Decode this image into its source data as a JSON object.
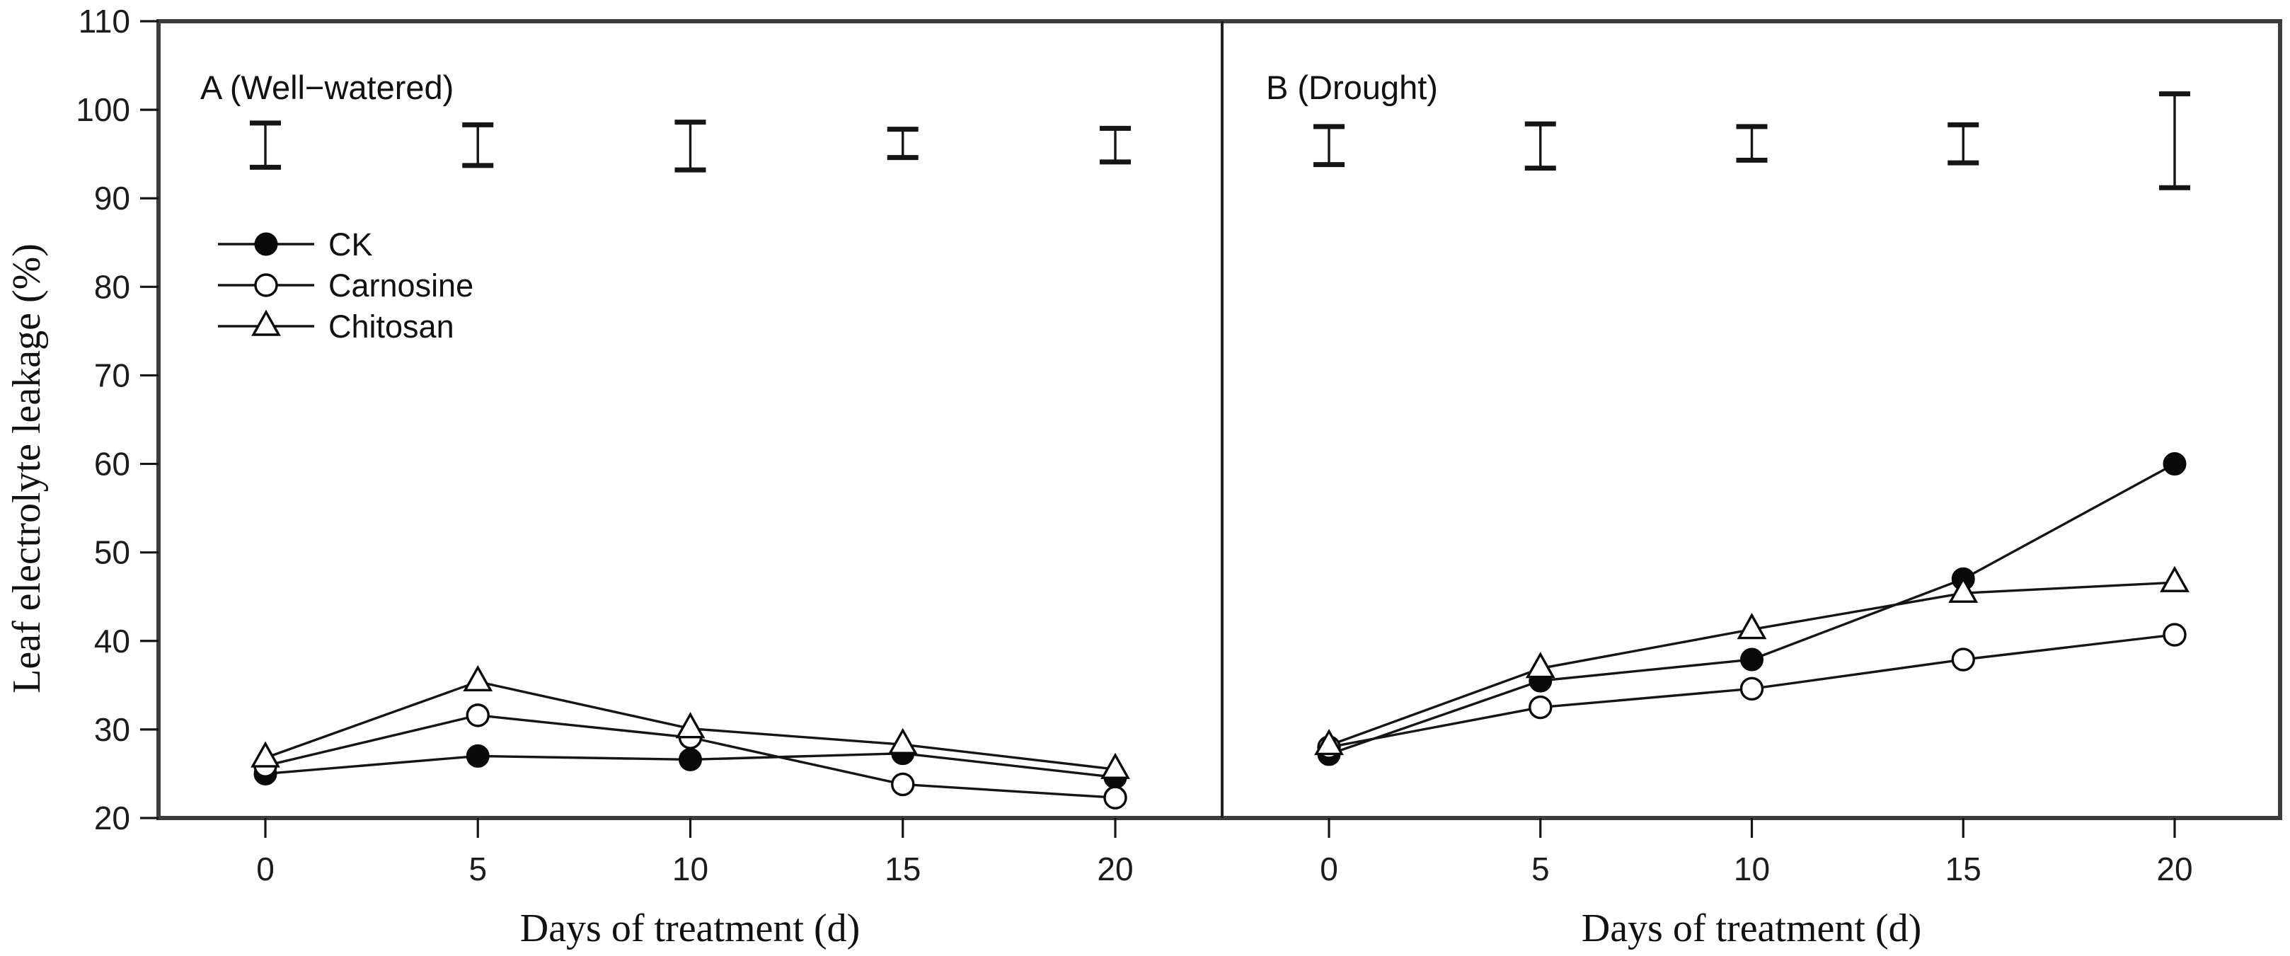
{
  "figure": {
    "background": "#ffffff",
    "ink_color": "#151515",
    "frame_color": "#3d3d3d",
    "y_axis_title": "Leaf electrolyte leakage (%)",
    "x_axis_title": "Days of treatment (d)",
    "legend": [
      {
        "label": "CK",
        "marker": "filled-circle"
      },
      {
        "label": "Carnosine",
        "marker": "open-circle"
      },
      {
        "label": "Chitosan",
        "marker": "open-triangle"
      }
    ]
  },
  "chart_data": [
    {
      "type": "line",
      "panel": "A",
      "title": "A (Well−watered)",
      "xlabel": "Days of treatment (d)",
      "ylabel": "Leaf electrolyte leakage (%)",
      "x": [
        0,
        5,
        10,
        15,
        20
      ],
      "xlim": [
        0,
        20
      ],
      "ylim": [
        20,
        110
      ],
      "yticks": [
        20,
        30,
        40,
        50,
        60,
        70,
        80,
        90,
        100,
        110
      ],
      "grid": false,
      "legend_position": "upper-left-inside",
      "series": [
        {
          "name": "CK",
          "marker": "filled-circle",
          "values": [
            25.0,
            27.0,
            26.6,
            27.3,
            24.6
          ]
        },
        {
          "name": "Carnosine",
          "marker": "open-circle",
          "values": [
            25.9,
            31.6,
            29.1,
            23.8,
            22.3
          ]
        },
        {
          "name": "Chitosan",
          "marker": "open-triangle",
          "values": [
            26.8,
            35.4,
            30.1,
            28.3,
            25.5
          ]
        }
      ],
      "error_bars": {
        "x": [
          0,
          5,
          10,
          15,
          20
        ],
        "low": [
          93.5,
          93.7,
          93.2,
          94.6,
          94.1
        ],
        "high": [
          98.5,
          98.3,
          98.6,
          97.8,
          97.9
        ]
      }
    },
    {
      "type": "line",
      "panel": "B",
      "title": "B (Drought)",
      "xlabel": "Days of treatment (d)",
      "ylabel": "Leaf electrolyte leakage (%)",
      "x": [
        0,
        5,
        10,
        15,
        20
      ],
      "xlim": [
        0,
        20
      ],
      "ylim": [
        20,
        110
      ],
      "yticks": [
        20,
        30,
        40,
        50,
        60,
        70,
        80,
        90,
        100,
        110
      ],
      "grid": false,
      "legend_position": "none",
      "series": [
        {
          "name": "CK",
          "marker": "filled-circle",
          "values": [
            27.2,
            35.5,
            37.9,
            47.0,
            60.0
          ]
        },
        {
          "name": "Carnosine",
          "marker": "open-circle",
          "values": [
            28.0,
            32.5,
            34.6,
            37.9,
            40.7
          ]
        },
        {
          "name": "Chitosan",
          "marker": "open-triangle",
          "values": [
            28.2,
            36.9,
            41.3,
            45.4,
            46.6
          ]
        }
      ],
      "error_bars": {
        "x": [
          0,
          5,
          10,
          15,
          20
        ],
        "low": [
          93.8,
          93.4,
          94.3,
          94.0,
          91.2
        ],
        "high": [
          98.1,
          98.4,
          98.1,
          98.3,
          101.8
        ]
      }
    }
  ]
}
